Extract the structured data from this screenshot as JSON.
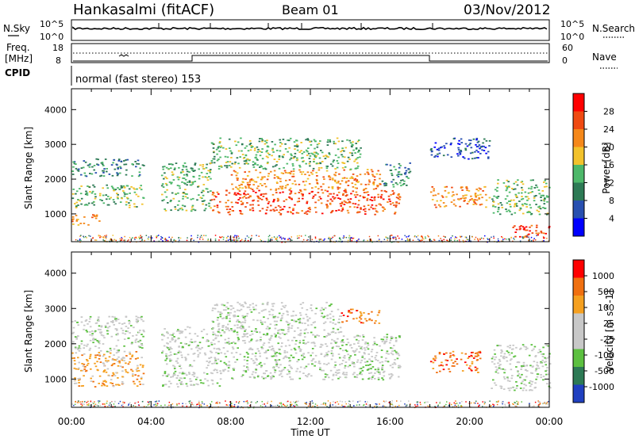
{
  "header": {
    "station": "Hankasalmi (fitACF)",
    "beam": "Beam 01",
    "date": "03/Nov/2012"
  },
  "nsky_panel": {
    "left_label": "N.Sky",
    "right_label": "N.Search",
    "ticks": [
      "10^5",
      "10^0"
    ]
  },
  "freq_panel": {
    "left_label_line1": "Freq.",
    "left_label_line2": "[MHz]",
    "cpid_label": "CPID",
    "left_ticks": [
      "18",
      "8"
    ],
    "right_ticks": [
      "60",
      "0"
    ],
    "right_label": "Nave",
    "cpid_text": "normal (fast stereo) 153"
  },
  "chart_data": [
    {
      "type": "heatmap",
      "title": "Power",
      "ylabel": "Slant Range [km]",
      "ylim": [
        200,
        4600
      ],
      "y_ticks": [
        "4000",
        "3000",
        "2000",
        "1000"
      ],
      "x_ticks": [
        "00:00",
        "04:00",
        "08:00",
        "12:00",
        "16:00",
        "20:00",
        "00:00"
      ],
      "colorbar_label": "Power [dB]",
      "colorbar_ticks": [
        "28",
        "24",
        "20",
        "16",
        "12",
        "8",
        "4"
      ],
      "colorscale": [
        "#0000ff",
        "#2850b0",
        "#2d7a55",
        "#4db86a",
        "#f2c22c",
        "#f5881a",
        "#f04a12",
        "#ff0000"
      ],
      "bands": [
        {
          "t0": 0.0,
          "t1": 3.6,
          "r0": 1200,
          "r1": 1850,
          "level": 3
        },
        {
          "t0": 0.0,
          "t1": 3.6,
          "r0": 2100,
          "r1": 2600,
          "level": 2
        },
        {
          "t0": 0.0,
          "t1": 1.5,
          "r0": 700,
          "r1": 1000,
          "level": 5
        },
        {
          "t0": 4.5,
          "t1": 7.0,
          "r0": 1100,
          "r1": 2500,
          "level": 3
        },
        {
          "t0": 7.0,
          "t1": 16.5,
          "r0": 1000,
          "r1": 1700,
          "level": 6
        },
        {
          "t0": 8.0,
          "t1": 15.5,
          "r0": 1700,
          "r1": 2300,
          "level": 5
        },
        {
          "t0": 7.0,
          "t1": 14.5,
          "r0": 2300,
          "r1": 3200,
          "level": 3
        },
        {
          "t0": 15.5,
          "t1": 17.0,
          "r0": 1800,
          "r1": 2500,
          "level": 2
        },
        {
          "t0": 18.0,
          "t1": 21.0,
          "r0": 1200,
          "r1": 1800,
          "level": 5
        },
        {
          "t0": 18.0,
          "t1": 21.0,
          "r0": 2600,
          "r1": 3200,
          "level": 1
        },
        {
          "t0": 21.0,
          "t1": 24.0,
          "r0": 1000,
          "r1": 2000,
          "level": 3
        },
        {
          "t0": 22.0,
          "t1": 24.0,
          "r0": 300,
          "r1": 700,
          "level": 6
        }
      ]
    },
    {
      "type": "heatmap",
      "title": "Velocity",
      "ylabel": "Slant Range [km]",
      "ylim": [
        200,
        4600
      ],
      "y_ticks": [
        "4000",
        "3000",
        "2000",
        "1000"
      ],
      "x_ticks": [
        "00:00",
        "04:00",
        "08:00",
        "12:00",
        "16:00",
        "20:00",
        "00:00"
      ],
      "xlabel": "Time UT",
      "colorbar_label": "Velocity [m s^-1]",
      "colorbar_ticks": [
        "1000",
        "500",
        "100",
        "25",
        "-25",
        "-100",
        "-500",
        "-1000"
      ],
      "colorscale": [
        "#2040c0",
        "#2d7a55",
        "#5cc040",
        "#c8c8c8",
        "#c8c8c8",
        "#f5a020",
        "#f07010",
        "#ff0000"
      ],
      "bands": [
        {
          "t0": 0.0,
          "t1": 3.6,
          "r0": 800,
          "r1": 1800,
          "level": 5
        },
        {
          "t0": 0.0,
          "t1": 3.6,
          "r0": 1800,
          "r1": 2800,
          "level": 3
        },
        {
          "t0": 4.5,
          "t1": 7.5,
          "r0": 800,
          "r1": 2500,
          "level": 3
        },
        {
          "t0": 7.5,
          "t1": 16.5,
          "r0": 1000,
          "r1": 2300,
          "level": 3
        },
        {
          "t0": 7.0,
          "t1": 13.5,
          "r0": 2300,
          "r1": 3200,
          "level": 3
        },
        {
          "t0": 13.5,
          "t1": 15.5,
          "r0": 2600,
          "r1": 3000,
          "level": 6
        },
        {
          "t0": 18.0,
          "t1": 20.5,
          "r0": 1200,
          "r1": 1800,
          "level": 6
        },
        {
          "t0": 21.0,
          "t1": 24.0,
          "r0": 700,
          "r1": 2000,
          "level": 3
        }
      ]
    }
  ]
}
